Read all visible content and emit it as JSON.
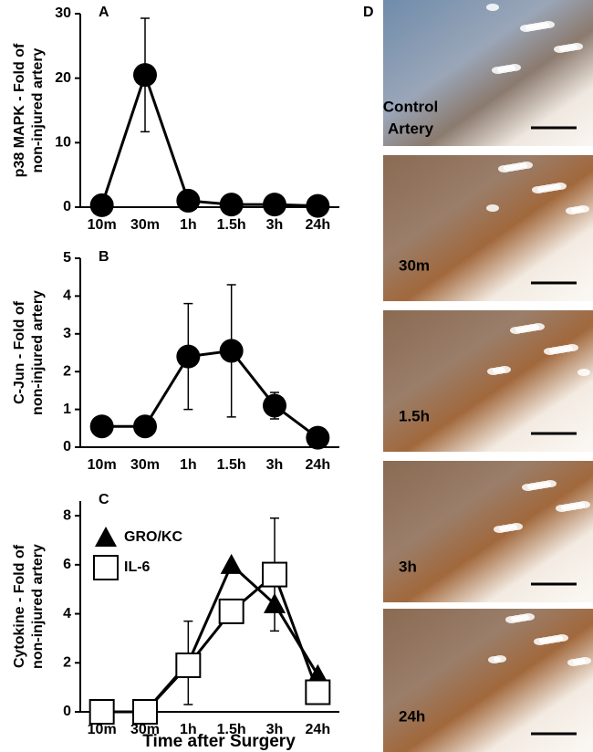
{
  "chart_data": [
    {
      "type": "line",
      "title": "A",
      "ylabel": [
        "p38 MAPK - Fold of",
        "non-injured artery"
      ],
      "categories": [
        "10m",
        "30m",
        "1h",
        "1.5h",
        "3h",
        "24h"
      ],
      "values": [
        0.3,
        20.5,
        1,
        0.4,
        0.4,
        0.2
      ],
      "errors": [
        null,
        8.8,
        null,
        null,
        null,
        null
      ],
      "marker": "circle",
      "color": "#000000",
      "ylim": [
        0,
        30
      ],
      "yticks": [
        0,
        10,
        20,
        30
      ]
    },
    {
      "type": "line",
      "title": "B",
      "ylabel": [
        "C-Jun - Fold of",
        "non-injured artery"
      ],
      "categories": [
        "10m",
        "30m",
        "1h",
        "1.5h",
        "3h",
        "24h"
      ],
      "values": [
        0.55,
        0.55,
        2.4,
        2.55,
        1.1,
        0.25
      ],
      "errors": [
        null,
        null,
        1.4,
        1.75,
        0.35,
        null
      ],
      "marker": "circle",
      "color": "#000000",
      "ylim": [
        0,
        5
      ],
      "yticks": [
        0,
        1,
        2,
        3,
        4,
        5
      ]
    },
    {
      "type": "line",
      "title": "C",
      "ylabel": [
        "Cytokine - Fold of",
        "non-injured artery"
      ],
      "xlabel": "Time after Surgery",
      "categories": [
        "10m",
        "30m",
        "1h",
        "1.5h",
        "3h",
        "24h"
      ],
      "series": [
        {
          "name": "GRO/KC",
          "color": "#000000",
          "marker": "triangle",
          "values": [
            0,
            0,
            2,
            6,
            4.4,
            1.5
          ],
          "errors": [
            null,
            null,
            1.7,
            null,
            null,
            null
          ]
        },
        {
          "name": "IL-6",
          "color": "#000000",
          "marker": "square",
          "values": [
            0,
            0,
            1.9,
            4.1,
            5.6,
            0.8
          ],
          "errors": [
            null,
            null,
            null,
            null,
            2.3,
            null
          ]
        }
      ],
      "legend": "upper-left",
      "ylim": [
        0,
        8.6
      ],
      "yticks": [
        0,
        2,
        4,
        6,
        8
      ]
    }
  ],
  "panel_d": {
    "label": "D",
    "images": [
      [
        "Control",
        "Artery"
      ],
      [
        "30m"
      ],
      [
        "1.5h"
      ],
      [
        "3h"
      ],
      [
        "24h"
      ]
    ]
  }
}
